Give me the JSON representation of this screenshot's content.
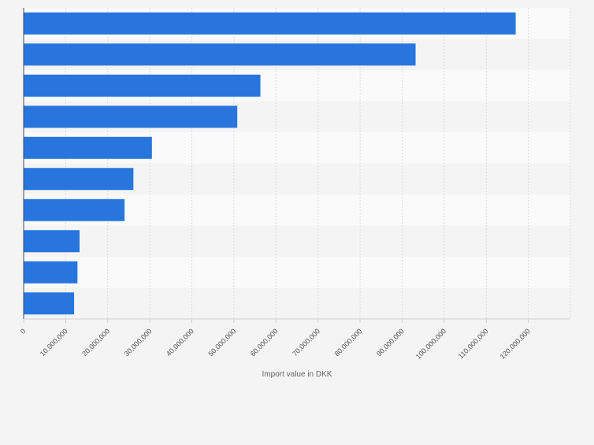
{
  "chart_data": {
    "type": "bar",
    "orientation": "horizontal",
    "title": "",
    "xlabel": "Import value in DKK",
    "ylabel": "",
    "categories": [
      "",
      "",
      "",
      "",
      "",
      "",
      "",
      "",
      "",
      ""
    ],
    "values": [
      117000000,
      93200000,
      56300000,
      50800000,
      30500000,
      26100000,
      24000000,
      13300000,
      12800000,
      12000000
    ],
    "xlim": [
      0,
      130000000
    ],
    "x_ticks": [
      0,
      10000000,
      20000000,
      30000000,
      40000000,
      50000000,
      60000000,
      70000000,
      80000000,
      90000000,
      100000000,
      110000000,
      120000000
    ],
    "x_tick_labels": [
      "0",
      "10,000,000",
      "20,000,000",
      "30,000,000",
      "40,000,000",
      "50,000,000",
      "60,000,000",
      "70,000,000",
      "80,000,000",
      "90,000,000",
      "100,000,000",
      "110,000,000",
      "120,000,000"
    ],
    "grid": true,
    "colors": {
      "bar": "#2876dd",
      "grid": "#dcdcdc",
      "stripe_light": "#fafafa",
      "stripe_dark": "#f4f4f4",
      "axis": "#3c4a5a",
      "tick_text": "#555555"
    }
  }
}
